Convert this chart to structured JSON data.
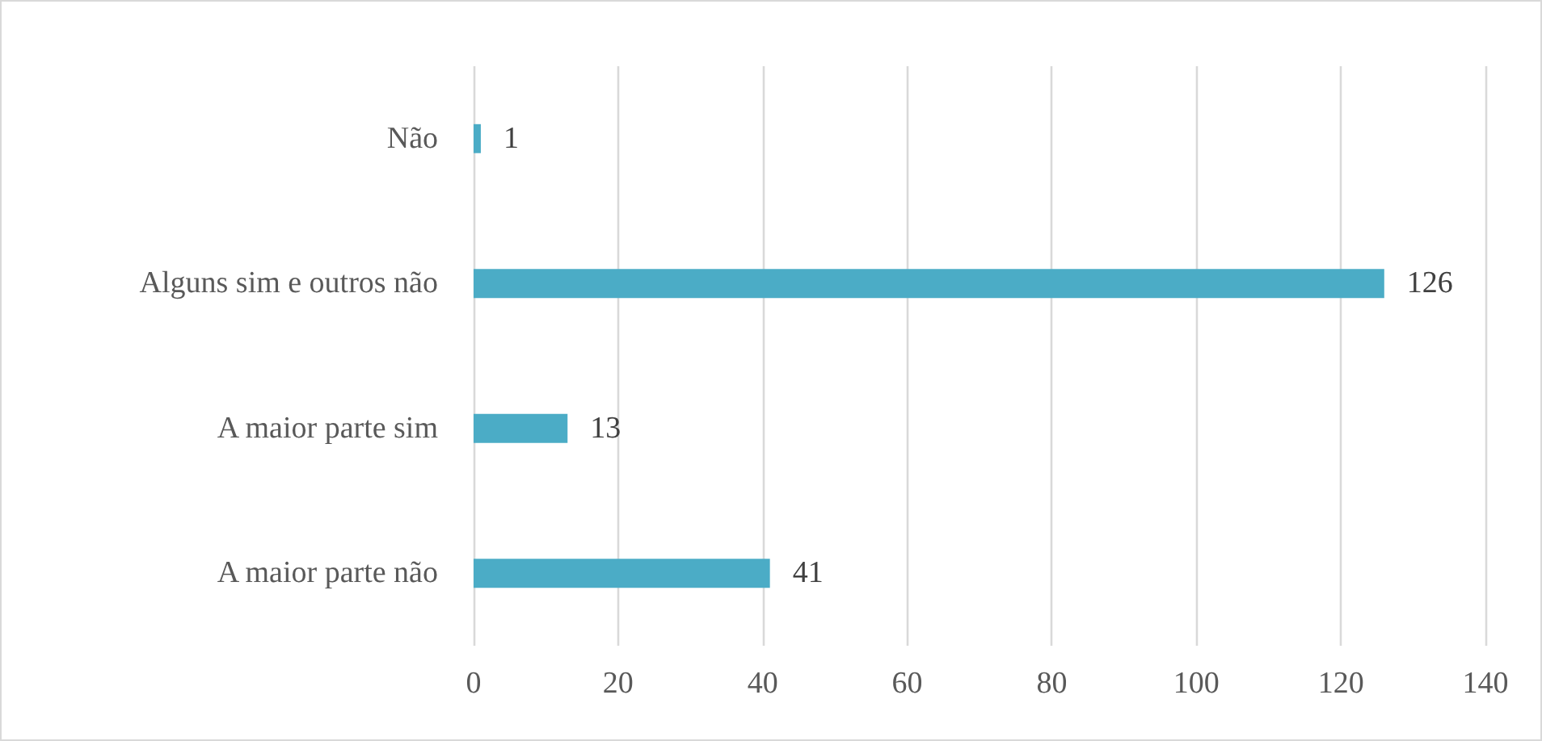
{
  "chart_data": {
    "type": "bar",
    "orientation": "horizontal",
    "categories": [
      "Não",
      "Alguns sim e outros não",
      "A maior parte sim",
      "A maior parte não"
    ],
    "values": [
      1,
      126,
      13,
      41
    ],
    "color": "#4bacc6",
    "xlim": [
      0,
      140
    ],
    "xticks": [
      0,
      20,
      40,
      60,
      80,
      100,
      120,
      140
    ],
    "grid": "x",
    "data_labels": true
  }
}
